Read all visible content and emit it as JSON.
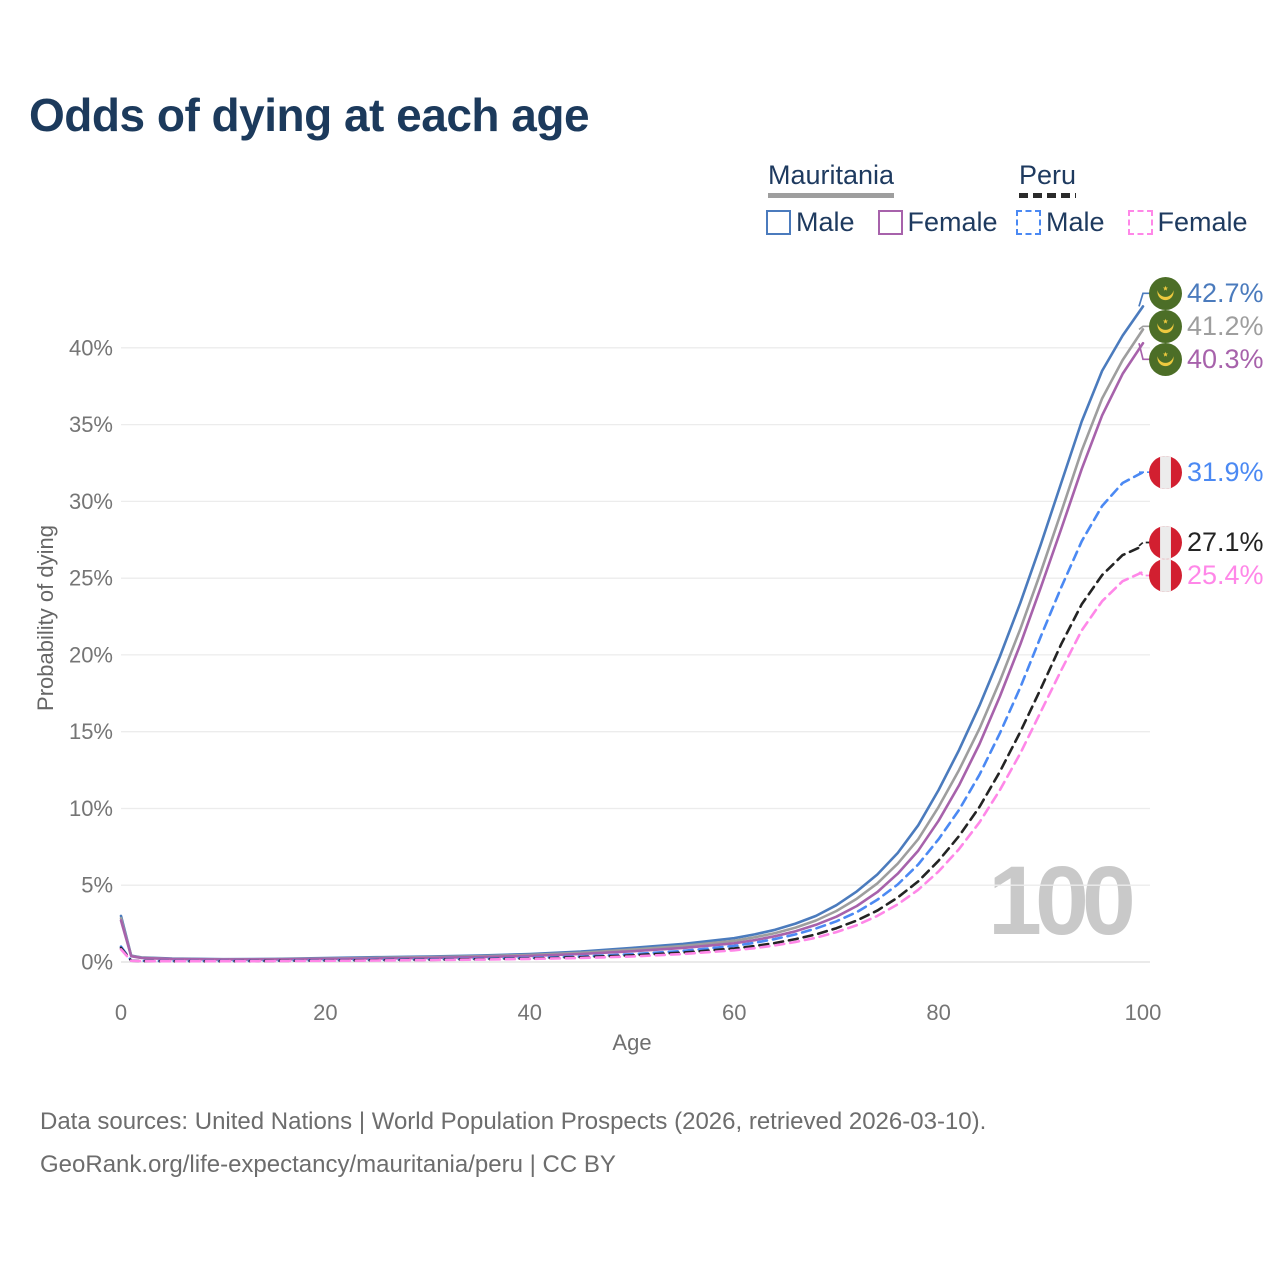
{
  "header": {
    "title": "Odds of dying at each age"
  },
  "legend": {
    "groups": [
      {
        "country": "Mauritania",
        "line_style": "solid",
        "line_color": "#9e9e9e",
        "items": [
          {
            "label": "Male",
            "color": "#4b7bbd",
            "dash": "solid"
          },
          {
            "label": "Female",
            "color": "#a762ab",
            "dash": "solid"
          }
        ]
      },
      {
        "country": "Peru",
        "line_style": "dashed",
        "line_color": "#2b2b2b",
        "items": [
          {
            "label": "Male",
            "color": "#4b89f3",
            "dash": "dashed"
          },
          {
            "label": "Female",
            "color": "#ff87e8",
            "dash": "dashed"
          }
        ]
      }
    ]
  },
  "chart_data": {
    "type": "line",
    "title": "Odds of dying at each age",
    "xlabel": "Age",
    "ylabel": "Probability of dying",
    "xlim": [
      0,
      100
    ],
    "ylim": [
      0,
      44
    ],
    "grid": "horizontal",
    "legend_position": "top-right",
    "watermark": "100",
    "xticks": [
      {
        "value": 0,
        "label": "0"
      },
      {
        "value": 20,
        "label": "20"
      },
      {
        "value": 40,
        "label": "40"
      },
      {
        "value": 60,
        "label": "60"
      },
      {
        "value": 80,
        "label": "80"
      },
      {
        "value": 100,
        "label": "100"
      }
    ],
    "yticks": [
      {
        "value": 0,
        "label": "0%"
      },
      {
        "value": 5,
        "label": "5%"
      },
      {
        "value": 10,
        "label": "10%"
      },
      {
        "value": 15,
        "label": "15%"
      },
      {
        "value": 20,
        "label": "20%"
      },
      {
        "value": 25,
        "label": "25%"
      },
      {
        "value": 30,
        "label": "30%"
      },
      {
        "value": 35,
        "label": "35%"
      },
      {
        "value": 40,
        "label": "40%"
      }
    ],
    "ages": [
      0,
      1,
      2,
      5,
      10,
      15,
      20,
      25,
      30,
      35,
      40,
      45,
      50,
      55,
      60,
      62,
      64,
      66,
      68,
      70,
      72,
      74,
      76,
      78,
      80,
      82,
      84,
      86,
      88,
      90,
      92,
      94,
      96,
      98,
      100
    ],
    "series": [
      {
        "id": "mauritania-male",
        "name": "Mauritania Male",
        "country": "Mauritania",
        "sex": "Male",
        "color": "#4b7bbd",
        "dash": "solid",
        "flag": "mauritania",
        "end_label": "42.7%",
        "values": [
          3.0,
          0.42,
          0.3,
          0.22,
          0.18,
          0.2,
          0.26,
          0.31,
          0.36,
          0.42,
          0.52,
          0.68,
          0.92,
          1.18,
          1.55,
          1.8,
          2.1,
          2.5,
          3.0,
          3.7,
          4.6,
          5.7,
          7.1,
          8.9,
          11.2,
          13.8,
          16.7,
          19.9,
          23.4,
          27.2,
          31.2,
          35.2,
          38.5,
          40.8,
          42.7
        ]
      },
      {
        "id": "mauritania-both",
        "name": "Mauritania",
        "country": "Mauritania",
        "sex": "Both",
        "color": "#9e9e9e",
        "dash": "solid",
        "flag": "mauritania",
        "end_label": "41.2%",
        "values": [
          2.85,
          0.4,
          0.28,
          0.2,
          0.17,
          0.18,
          0.23,
          0.27,
          0.31,
          0.37,
          0.46,
          0.6,
          0.81,
          1.05,
          1.38,
          1.61,
          1.88,
          2.24,
          2.7,
          3.32,
          4.12,
          5.12,
          6.4,
          8.0,
          10.1,
          12.5,
          15.2,
          18.3,
          21.7,
          25.4,
          29.3,
          33.3,
          36.7,
          39.2,
          41.2
        ]
      },
      {
        "id": "mauritania-female",
        "name": "Mauritania Female",
        "country": "Mauritania",
        "sex": "Female",
        "color": "#a762ab",
        "dash": "solid",
        "flag": "mauritania",
        "end_label": "40.3%",
        "values": [
          2.7,
          0.38,
          0.26,
          0.19,
          0.16,
          0.17,
          0.2,
          0.23,
          0.27,
          0.32,
          0.4,
          0.52,
          0.7,
          0.92,
          1.22,
          1.42,
          1.68,
          2.0,
          2.42,
          2.95,
          3.65,
          4.55,
          5.75,
          7.25,
          9.2,
          11.5,
          14.2,
          17.3,
          20.7,
          24.4,
          28.2,
          32.1,
          35.6,
          38.3,
          40.3
        ]
      },
      {
        "id": "peru-male",
        "name": "Peru Male",
        "country": "Peru",
        "sex": "Male",
        "color": "#4b89f3",
        "dash": "dashed",
        "flag": "peru",
        "end_label": "31.9%",
        "values": [
          1.0,
          0.09,
          0.07,
          0.06,
          0.06,
          0.08,
          0.11,
          0.14,
          0.17,
          0.21,
          0.27,
          0.36,
          0.51,
          0.72,
          1.05,
          1.25,
          1.5,
          1.8,
          2.18,
          2.65,
          3.25,
          4.05,
          5.05,
          6.35,
          8.0,
          9.9,
          12.2,
          14.9,
          17.9,
          21.2,
          24.4,
          27.4,
          29.7,
          31.2,
          31.9
        ]
      },
      {
        "id": "peru-both",
        "name": "Peru",
        "country": "Peru",
        "sex": "Both",
        "color": "#242424",
        "dash": "dashed",
        "flag": "peru",
        "end_label": "27.1%",
        "values": [
          0.92,
          0.085,
          0.065,
          0.055,
          0.055,
          0.07,
          0.095,
          0.12,
          0.145,
          0.18,
          0.23,
          0.31,
          0.43,
          0.61,
          0.88,
          1.04,
          1.24,
          1.49,
          1.8,
          2.2,
          2.7,
          3.35,
          4.2,
          5.25,
          6.6,
          8.2,
          10.1,
          12.4,
          15.0,
          17.8,
          20.7,
          23.3,
          25.2,
          26.5,
          27.1
        ]
      },
      {
        "id": "peru-female",
        "name": "Peru Female",
        "country": "Peru",
        "sex": "Female",
        "color": "#ff87e8",
        "dash": "dashed",
        "flag": "peru",
        "end_label": "25.4%",
        "values": [
          0.82,
          0.075,
          0.06,
          0.05,
          0.05,
          0.06,
          0.08,
          0.1,
          0.125,
          0.155,
          0.2,
          0.26,
          0.36,
          0.52,
          0.76,
          0.9,
          1.08,
          1.3,
          1.58,
          1.95,
          2.4,
          3.0,
          3.75,
          4.7,
          5.9,
          7.35,
          9.1,
          11.2,
          13.6,
          16.3,
          19.0,
          21.6,
          23.5,
          24.8,
          25.4
        ]
      }
    ],
    "flag_colors": {
      "mauritania_green": "#4c6e27",
      "mauritania_yellow": "#edc93f",
      "peru_red": "#d21f30",
      "peru_white": "#ececec"
    }
  },
  "footer": {
    "line1": "Data sources: United Nations | World Population Prospects (2026, retrieved 2026-03-10).",
    "line2": "GeoRank.org/life-expectancy/mauritania/peru | CC BY"
  }
}
